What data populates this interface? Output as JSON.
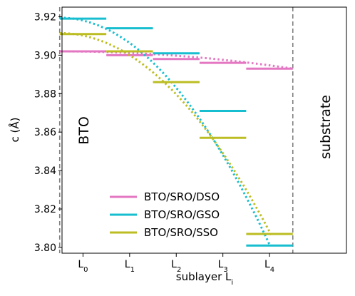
{
  "chart_data": {
    "type": "line",
    "xlabel": "sublayer L",
    "xlabel_sub": "i",
    "ylabel": "c (Å)",
    "ylim": [
      3.797,
      3.925
    ],
    "yticks": [
      "3.80",
      "3.82",
      "3.84",
      "3.86",
      "3.88",
      "3.90",
      "3.92"
    ],
    "ytick_values": [
      3.8,
      3.82,
      3.84,
      3.86,
      3.88,
      3.9,
      3.92
    ],
    "xticks": [
      {
        "main": "L",
        "sub": "0",
        "x": 0
      },
      {
        "main": "L",
        "sub": "1",
        "x": 1
      },
      {
        "main": "L",
        "sub": "2",
        "x": 2
      },
      {
        "main": "L",
        "sub": "3",
        "x": 3
      },
      {
        "main": "L",
        "sub": "4",
        "x": 4
      }
    ],
    "xlim": [
      -0.45,
      5.65
    ],
    "boundaries": [
      -0.5,
      4.5
    ],
    "left_region_label": "BTO",
    "right_region_label": "substrate",
    "series": [
      {
        "name": "BTO/SRO/DSO",
        "color": "#e377c2",
        "steps": [
          {
            "x0": -0.5,
            "x1": 0.5,
            "y": 3.902
          },
          {
            "x0": 0.5,
            "x1": 1.5,
            "y": 3.9
          },
          {
            "x0": 1.5,
            "x1": 2.5,
            "y": 3.898
          },
          {
            "x0": 2.5,
            "x1": 3.5,
            "y": 3.896
          },
          {
            "x0": 3.5,
            "x1": 4.5,
            "y": 3.893
          }
        ],
        "fit_x": [
          -0.5,
          4.5
        ],
        "fit_y": [
          3.902,
          3.893
        ],
        "fit": {
          "a": 3.902,
          "b": 0.0,
          "c": -0.00036
        }
      },
      {
        "name": "BTO/SRO/GSO",
        "color": "#17becf",
        "steps": [
          {
            "x0": -0.5,
            "x1": 0.5,
            "y": 3.919
          },
          {
            "x0": 0.5,
            "x1": 1.5,
            "y": 3.914
          },
          {
            "x0": 1.5,
            "x1": 2.5,
            "y": 3.901
          },
          {
            "x0": 2.5,
            "x1": 3.5,
            "y": 3.871
          },
          {
            "x0": 3.5,
            "x1": 4.5,
            "y": 3.801
          }
        ],
        "fit_x": [
          -0.5,
          4.0
        ],
        "fit_y": [
          3.919,
          3.801
        ],
        "fit": {
          "a": 3.9195,
          "b": 0.0,
          "c": -0.00583
        }
      },
      {
        "name": "BTO/SRO/SSO",
        "color": "#bcbd22",
        "steps": [
          {
            "x0": -0.5,
            "x1": 0.5,
            "y": 3.911
          },
          {
            "x0": 0.5,
            "x1": 1.5,
            "y": 3.902
          },
          {
            "x0": 1.5,
            "x1": 2.5,
            "y": 3.886
          },
          {
            "x0": 2.5,
            "x1": 3.5,
            "y": 3.857
          },
          {
            "x0": 3.5,
            "x1": 4.5,
            "y": 3.807
          }
        ],
        "fit_x": [
          -0.5,
          4.05
        ],
        "fit_y": [
          3.911,
          3.807
        ],
        "fit": {
          "a": 3.9115,
          "b": 0.0,
          "c": -0.0051
        }
      }
    ],
    "legend_position": "lower-left"
  }
}
